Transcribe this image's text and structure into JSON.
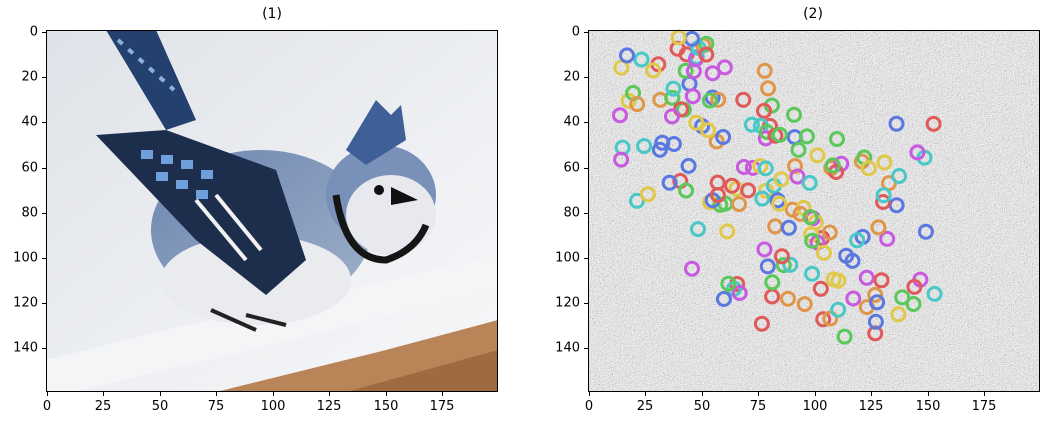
{
  "panels": [
    {
      "title": "(1)",
      "image": "blue-jay-on-snowy-railing",
      "x_ticks": [
        "0",
        "25",
        "50",
        "75",
        "100",
        "125",
        "150",
        "175"
      ],
      "y_ticks": [
        "0",
        "20",
        "40",
        "60",
        "80",
        "100",
        "120",
        "140"
      ],
      "xlim": [
        0,
        200
      ],
      "ylim": [
        160,
        0
      ]
    },
    {
      "title": "(2)",
      "image": "noise-with-colored-keypoint-circles",
      "x_ticks": [
        "0",
        "25",
        "50",
        "75",
        "100",
        "125",
        "150",
        "175"
      ],
      "y_ticks": [
        "0",
        "20",
        "40",
        "60",
        "80",
        "100",
        "120",
        "140"
      ],
      "xlim": [
        0,
        200
      ],
      "ylim": [
        160,
        0
      ]
    }
  ],
  "colors": {
    "sky": "#eceef2",
    "bird_blue": "#4f6f9f",
    "bird_dark": "#1b2a44",
    "snow": "#f5f6f8",
    "wood": "#b98457",
    "keypoint_palette": [
      "#e05a5a",
      "#5ac85a",
      "#5a78e0",
      "#e0c84a",
      "#c85ae0",
      "#4ac8c8",
      "#e0964a"
    ]
  }
}
